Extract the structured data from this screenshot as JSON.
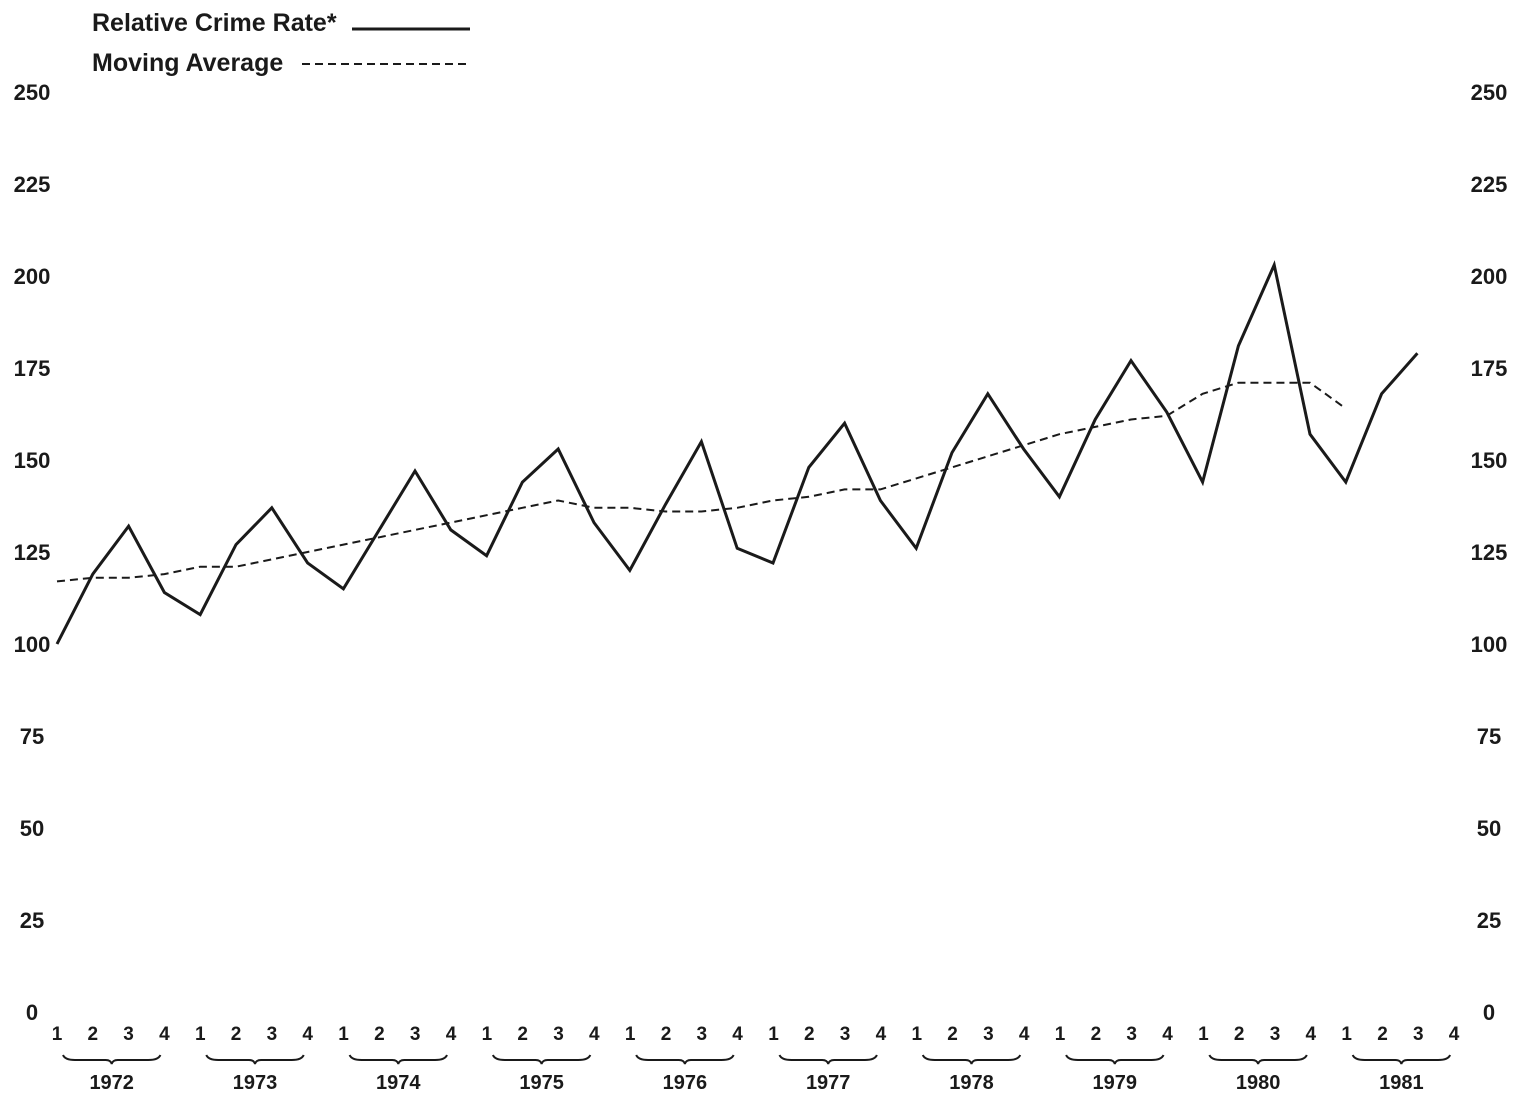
{
  "chart_data": {
    "type": "line",
    "legend": [
      {
        "label": "Relative Crime Rate*",
        "style": "solid"
      },
      {
        "label": "Moving Average",
        "style": "dashed"
      }
    ],
    "legend_position": "top-left",
    "ylim": [
      0,
      250
    ],
    "yticks": [
      "0",
      "25",
      "50",
      "75",
      "100",
      "125",
      "150",
      "175",
      "200",
      "225",
      "250"
    ],
    "quarter_labels": [
      "1",
      "2",
      "3",
      "4"
    ],
    "years": [
      "1972",
      "1973",
      "1974",
      "1975",
      "1976",
      "1977",
      "1978",
      "1979",
      "1980",
      "1981"
    ],
    "grid": false,
    "line_color": "#1a1a1a",
    "series": [
      {
        "name": "Relative Crime Rate*",
        "style": "solid",
        "values": [
          100,
          119,
          132,
          114,
          108,
          127,
          137,
          122,
          115,
          131,
          147,
          131,
          124,
          144,
          153,
          133,
          120,
          138,
          155,
          126,
          122,
          148,
          160,
          139,
          126,
          152,
          168,
          153,
          140,
          161,
          177,
          163,
          144,
          181,
          203,
          157,
          144,
          168,
          179
        ]
      },
      {
        "name": "Moving Average",
        "style": "dashed",
        "values": [
          117,
          118,
          118,
          119,
          121,
          121,
          123,
          125,
          127,
          129,
          131,
          133,
          135,
          137,
          139,
          137,
          137,
          136,
          136,
          137,
          139,
          140,
          142,
          142,
          145,
          148,
          151,
          154,
          157,
          159,
          161,
          162,
          168,
          171,
          171,
          171,
          164,
          null,
          null
        ]
      }
    ]
  }
}
